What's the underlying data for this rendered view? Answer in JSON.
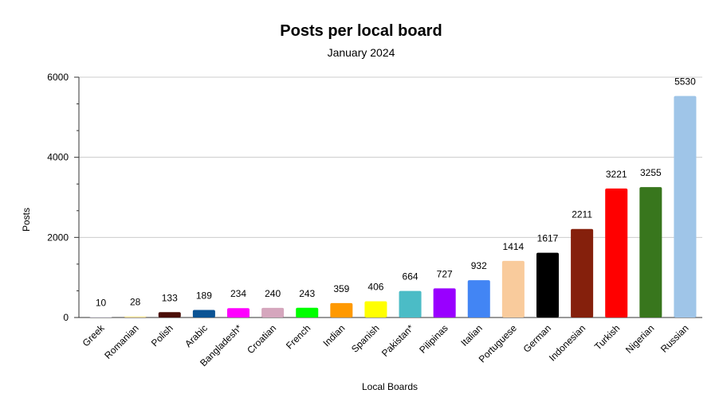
{
  "chart_data": {
    "type": "bar",
    "title": "Posts per local board",
    "subtitle": "January 2024",
    "xlabel": "Local Boards",
    "ylabel": "Posts",
    "ylim": [
      0,
      6000
    ],
    "yticks": [
      0,
      2000,
      4000,
      6000
    ],
    "grid": true,
    "legend": "none",
    "categories": [
      "Greek",
      "Romanian",
      "Polish",
      "Arabic",
      "Bangladesh*",
      "Croatian",
      "French",
      "Indian",
      "Spanish",
      "Pakistan*",
      "Pilipinas",
      "Italian",
      "Portuguese",
      "German",
      "Indonesian",
      "Turkish",
      "Nigerian",
      "Russian"
    ],
    "values": [
      10,
      28,
      133,
      189,
      234,
      240,
      243,
      359,
      406,
      664,
      727,
      932,
      1414,
      1617,
      2211,
      3221,
      3255,
      5530
    ],
    "colors": [
      "#d9d2e9",
      "#ffe599",
      "#4a0e08",
      "#0b5394",
      "#ff00ff",
      "#d5a6bd",
      "#00ff00",
      "#ff9900",
      "#ffff00",
      "#4bbcc6",
      "#9900ff",
      "#4285f4",
      "#f9cb9c",
      "#000000",
      "#85200c",
      "#ff0000",
      "#38761d",
      "#9fc5e8"
    ]
  }
}
